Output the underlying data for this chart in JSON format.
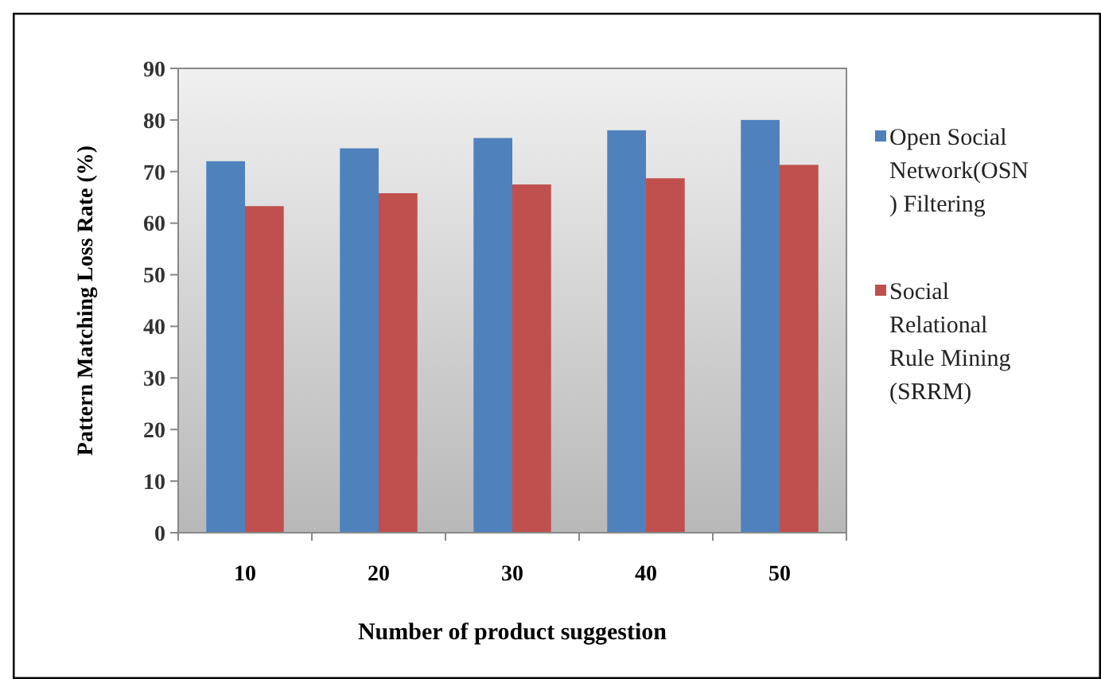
{
  "chart_data": {
    "type": "bar",
    "xlabel": "Number of product suggestion",
    "ylabel": "Pattern Matching Loss Rate (%)",
    "categories": [
      "10",
      "20",
      "30",
      "40",
      "50"
    ],
    "series": [
      {
        "name": "Open Social Network(OSN ) Filtering",
        "color": "#4f81bd",
        "values": [
          72,
          74.5,
          76.5,
          78,
          80
        ]
      },
      {
        "name": "Social Relational Rule Mining (SRRM)",
        "color": "#c0504d",
        "values": [
          63.3,
          65.8,
          67.5,
          68.7,
          71.3
        ]
      }
    ],
    "ylim": [
      0,
      90
    ],
    "yticks": [
      0,
      10,
      20,
      30,
      40,
      50,
      60,
      70,
      80,
      90
    ],
    "grid": false,
    "legend": "right"
  }
}
